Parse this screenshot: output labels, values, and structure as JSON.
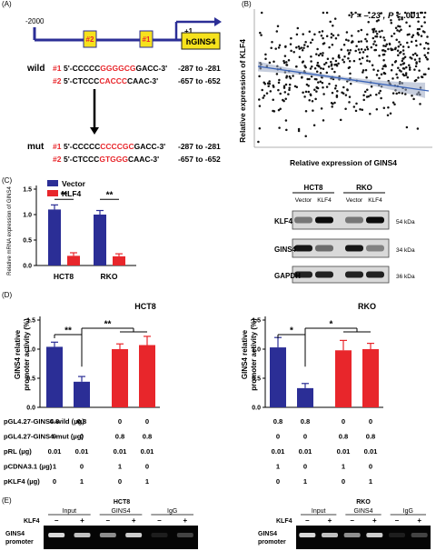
{
  "panels": {
    "a": "(A)",
    "b": "(B)",
    "c": "(C)",
    "d": "(D)",
    "e": "(E)"
  },
  "panel_a": {
    "start": "-2000",
    "tss": "+1",
    "gene": "hGINS4",
    "site2": "#2",
    "site1": "#1",
    "wild_label": "wild",
    "mut_label": "mut",
    "wild_rows": [
      {
        "site": "#1",
        "pre": "5'-CCCCC",
        "core": "GGGGCG",
        "post": "GACC-3'",
        "range": "-287 to -281"
      },
      {
        "site": "#2",
        "pre": "5'-CTCCC",
        "core": "CACCC",
        "post": "CAAC-3'",
        "range": "-657 to -652"
      }
    ],
    "mut_rows": [
      {
        "site": "#1",
        "pre": "5'-CCCCC",
        "core": "CCCCGC",
        "post": "GACC-3'",
        "range": "-287 to -281"
      },
      {
        "site": "#2",
        "pre": "5'-CTCCC",
        "core": "GTGGG",
        "post": "CAAC-3'",
        "range": "-657 to -652"
      }
    ]
  },
  "panel_b": {
    "stat_r": "r = –.23 , ",
    "stat_p": "P",
    "stat_p_rest": " < .001",
    "xlabel": "Relative expression of GINS4",
    "ylabel": "Relative expression of KLF4"
  },
  "panel_c": {
    "legend": [
      "Vector",
      "KLF4"
    ],
    "ylabel": "Relative mRNA expression of GINS4",
    "yticks": [
      "0.0",
      "0.5",
      "1.0",
      "1.5"
    ],
    "sig": [
      "**",
      "**"
    ],
    "blot": {
      "cell_lines": [
        "HCT8",
        "RKO"
      ],
      "lanes": [
        "Vector",
        "KLF4",
        "Vector",
        "KLF4"
      ],
      "proteins": [
        "KLF4",
        "GINS4",
        "GAPDH"
      ],
      "sizes": [
        "54 kDa",
        "34 kDa",
        "36 kDa"
      ]
    }
  },
  "chart_data": [
    {
      "type": "bar",
      "categories": [
        "HCT8",
        "RKO"
      ],
      "series": [
        {
          "name": "Vector",
          "values": [
            1.1,
            1.0
          ],
          "errors": [
            0.09,
            0.08
          ]
        },
        {
          "name": "KLF4",
          "values": [
            0.19,
            0.18
          ],
          "errors": [
            0.06,
            0.05
          ]
        }
      ],
      "ylabel": "Relative mRNA expression of GINS4",
      "ylim": [
        0,
        1.5
      ],
      "colors": [
        "#2b2e96",
        "#e8262b"
      ]
    },
    {
      "type": "bar",
      "title": "HCT8",
      "ylabel": "GINS4 relative promoter activity (%)",
      "ylim": [
        0,
        1.5
      ],
      "yticks": [
        "0.0",
        "0.5",
        "1.0",
        "1.5"
      ],
      "values": [
        1.04,
        0.44,
        1.0,
        1.07
      ],
      "errors": [
        0.08,
        0.09,
        0.09,
        0.15
      ],
      "colors": [
        "#2b2e96",
        "#2b2e96",
        "#e8262b",
        "#e8262b"
      ],
      "sig": [
        "**",
        "**"
      ]
    },
    {
      "type": "bar",
      "title": "RKO",
      "ylabel": "GINS4 relative promoter activity (%)",
      "ylim": [
        0,
        1.5
      ],
      "yticks": [
        "0.0",
        "0.5",
        "1.0",
        "1.5"
      ],
      "values": [
        1.03,
        0.33,
        0.98,
        1.0
      ],
      "errors": [
        0.17,
        0.08,
        0.17,
        0.1
      ],
      "colors": [
        "#2b2e96",
        "#2b2e96",
        "#e8262b",
        "#e8262b"
      ],
      "sig": [
        "*",
        "*"
      ]
    }
  ],
  "panel_d": {
    "table_rows": [
      {
        "label": "pGL4.27-GINS4-wild (µg)",
        "values": [
          "0.8",
          "0.8",
          "0",
          "0"
        ]
      },
      {
        "label": "pGL4.27-GINS4-mut (µg)",
        "values": [
          "0",
          "0",
          "0.8",
          "0.8"
        ]
      },
      {
        "label": "pRL (µg)",
        "values": [
          "0.01",
          "0.01",
          "0.01",
          "0.01"
        ]
      },
      {
        "label": "pCDNA3.1 (µg)",
        "values": [
          "1",
          "0",
          "1",
          "0"
        ]
      },
      {
        "label": "pKLF4 (µg)",
        "values": [
          "0",
          "1",
          "0",
          "1"
        ]
      }
    ]
  },
  "panel_e": {
    "left_title": "HCT8",
    "right_title": "RKO",
    "klf4": "KLF4",
    "groups": [
      "Input",
      "GINS4",
      "IgG"
    ],
    "signs": [
      "–",
      "+",
      "–",
      "+",
      "–",
      "+"
    ],
    "promoter_label": "GINS4 promoter"
  }
}
